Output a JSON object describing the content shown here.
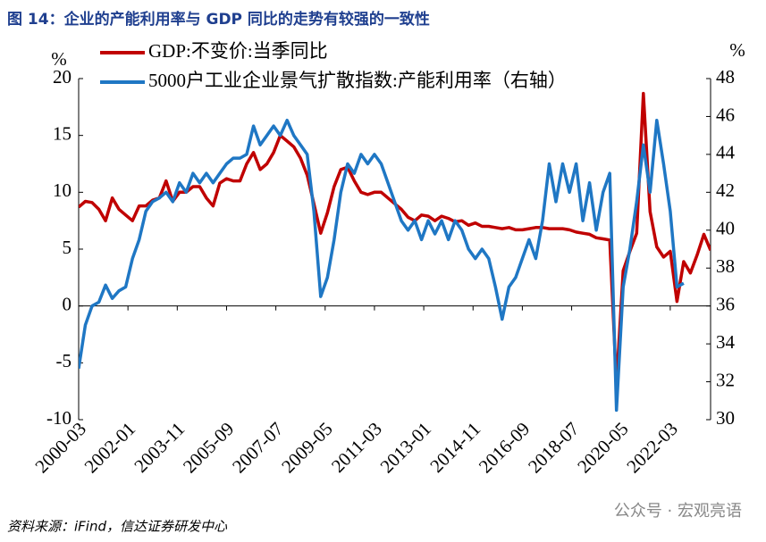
{
  "chart_data": {
    "type": "line",
    "title": "图 14：企业的产能利用率与 GDP 同比的走势有较强的一致性",
    "y_label": "%",
    "y2_label": "%",
    "source": "资料来源：iFind，信达证券研发中心",
    "watermark": "公众号 · 宏观亮语",
    "x": [
      "2000-03",
      "2000-06",
      "2000-09",
      "2000-12",
      "2001-03",
      "2001-06",
      "2001-09",
      "2001-12",
      "2002-03",
      "2002-06",
      "2002-09",
      "2002-12",
      "2003-03",
      "2003-06",
      "2003-09",
      "2003-12",
      "2004-03",
      "2004-06",
      "2004-09",
      "2004-12",
      "2005-03",
      "2005-06",
      "2005-09",
      "2005-12",
      "2006-03",
      "2006-06",
      "2006-09",
      "2006-12",
      "2007-03",
      "2007-06",
      "2007-09",
      "2007-12",
      "2008-03",
      "2008-06",
      "2008-09",
      "2008-12",
      "2009-03",
      "2009-06",
      "2009-09",
      "2009-12",
      "2010-03",
      "2010-06",
      "2010-09",
      "2010-12",
      "2011-03",
      "2011-06",
      "2011-09",
      "2011-12",
      "2012-03",
      "2012-06",
      "2012-09",
      "2012-12",
      "2013-03",
      "2013-06",
      "2013-09",
      "2013-12",
      "2014-03",
      "2014-06",
      "2014-09",
      "2014-12",
      "2015-03",
      "2015-06",
      "2015-09",
      "2015-12",
      "2016-03",
      "2016-06",
      "2016-09",
      "2016-12",
      "2017-03",
      "2017-06",
      "2017-09",
      "2017-12",
      "2018-03",
      "2018-06",
      "2018-09",
      "2018-12",
      "2019-03",
      "2019-06",
      "2019-09",
      "2019-12",
      "2020-03",
      "2020-06",
      "2020-09",
      "2020-12",
      "2021-03",
      "2021-06",
      "2021-09",
      "2021-12",
      "2022-03",
      "2022-06",
      "2022-09",
      "2022-12",
      "2023-03",
      "2023-06",
      "2023-09"
    ],
    "xticks": [
      "2000-03",
      "2002-01",
      "2003-11",
      "2005-09",
      "2007-07",
      "2009-05",
      "2011-03",
      "2013-01",
      "2014-11",
      "2016-09",
      "2018-07",
      "2020-05",
      "2022-03"
    ],
    "ylim": [
      -10,
      20
    ],
    "yticks": [
      -10,
      -5,
      0,
      5,
      10,
      15,
      20
    ],
    "y2lim": [
      30,
      48
    ],
    "y2ticks": [
      30,
      32,
      34,
      36,
      38,
      40,
      42,
      44,
      46,
      48
    ],
    "series": [
      {
        "name": "GDP:不变价:当季同比",
        "color": "#c00000",
        "values": [
          8.7,
          9.2,
          9.1,
          8.5,
          7.5,
          9.5,
          8.5,
          8.0,
          7.5,
          8.8,
          8.8,
          9.3,
          9.5,
          11.0,
          9.2,
          10.0,
          10.0,
          10.5,
          10.5,
          9.5,
          8.8,
          10.8,
          11.2,
          11.0,
          11.0,
          12.5,
          13.5,
          12.0,
          12.5,
          13.5,
          15.0,
          14.5,
          14.0,
          13.0,
          11.5,
          9.0,
          6.4,
          8.2,
          10.5,
          12.0,
          12.2,
          11.0,
          10.0,
          9.8,
          10.0,
          10.0,
          9.5,
          9.0,
          8.5,
          7.8,
          7.5,
          8.0,
          7.9,
          7.5,
          7.9,
          7.7,
          7.4,
          7.5,
          7.1,
          7.3,
          7.0,
          7.0,
          6.9,
          6.8,
          6.9,
          6.7,
          6.7,
          6.8,
          6.9,
          6.9,
          6.8,
          6.8,
          6.8,
          6.7,
          6.5,
          6.4,
          6.3,
          6.0,
          5.9,
          5.8,
          -6.9,
          3.1,
          4.8,
          6.4,
          18.7,
          8.3,
          5.2,
          4.3,
          4.8,
          0.4,
          3.9,
          2.9,
          4.5,
          6.3,
          4.9
        ]
      },
      {
        "name": "5000户工业企业景气扩散指数:产能利用率（右轴）",
        "color": "#1f77c4",
        "axis": "y2",
        "values": [
          32.7,
          35.0,
          36.0,
          36.2,
          37.1,
          36.4,
          36.8,
          37.0,
          38.5,
          39.5,
          41.0,
          41.5,
          41.7,
          42.0,
          41.5,
          42.5,
          42.0,
          43.0,
          42.5,
          43.0,
          42.5,
          43.0,
          43.5,
          43.8,
          43.8,
          44.0,
          45.5,
          44.5,
          45.0,
          45.5,
          45.0,
          45.8,
          45.0,
          44.5,
          44.0,
          41.0,
          36.5,
          37.5,
          39.5,
          42.0,
          43.5,
          43.0,
          44.0,
          43.5,
          44.0,
          43.5,
          42.5,
          41.5,
          40.5,
          40.0,
          40.5,
          39.5,
          40.5,
          39.8,
          40.5,
          39.5,
          40.5,
          40.0,
          39.0,
          38.5,
          39.0,
          38.5,
          37.0,
          35.3,
          37.0,
          37.5,
          38.5,
          39.5,
          38.5,
          40.5,
          43.5,
          41.5,
          43.5,
          42.0,
          43.5,
          40.5,
          42.5,
          40.0,
          42.0,
          43.0,
          30.5,
          37.0,
          39.0,
          41.5,
          44.5,
          42.0,
          45.8,
          43.5,
          41.0,
          37.0,
          37.2,
          null,
          null,
          null,
          null
        ]
      }
    ]
  }
}
